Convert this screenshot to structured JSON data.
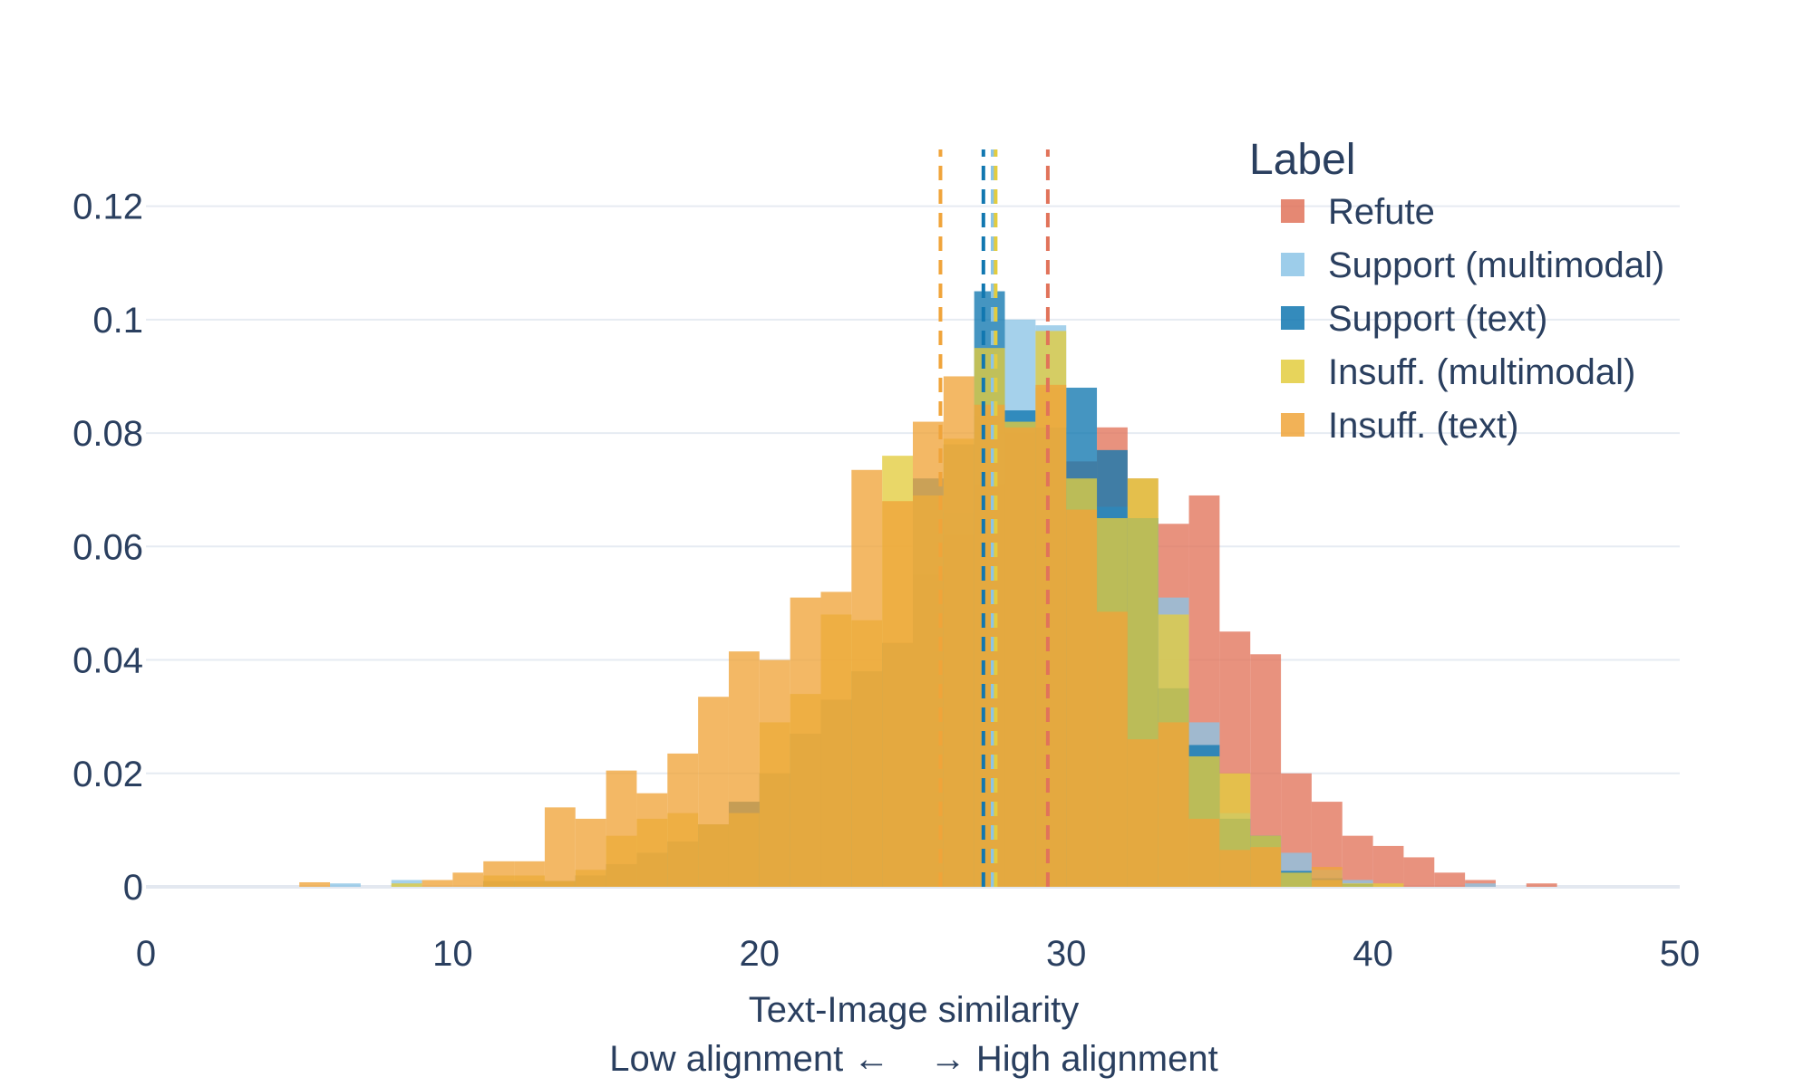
{
  "chart_data": {
    "type": "bar",
    "xlabel": "Text-Image similarity",
    "xlabel_sub": "Low alignment ←    → High alignment",
    "ylabel": "",
    "xlim": [
      0,
      50
    ],
    "ylim": [
      0,
      0.13
    ],
    "x_ticks": [
      0,
      10,
      20,
      30,
      40,
      50
    ],
    "y_ticks": [
      0,
      0.02,
      0.04,
      0.06,
      0.08,
      0.1,
      0.12
    ],
    "y_tick_labels": [
      "0",
      "0.02",
      "0.04",
      "0.06",
      "0.08",
      "0.1",
      "0.12"
    ],
    "grid": true,
    "bin_start": 5,
    "bin_width": 1,
    "bin_edges": [
      5,
      6,
      7,
      8,
      9,
      10,
      11,
      12,
      13,
      14,
      15,
      16,
      17,
      18,
      19,
      20,
      21,
      22,
      23,
      24,
      25,
      26,
      27,
      28,
      29,
      30,
      31,
      32,
      33,
      34,
      35,
      36,
      37,
      38,
      39,
      40,
      41,
      42,
      43,
      44,
      45,
      46
    ],
    "legend": {
      "title": "Label",
      "position": "top-right",
      "items": [
        {
          "label": "Refute",
          "color": "#e1735a"
        },
        {
          "label": "Support (multimodal)",
          "color": "#8cc4e6"
        },
        {
          "label": "Support (text)",
          "color": "#1177b0"
        },
        {
          "label": "Insuff. (multimodal)",
          "color": "#e3cc3e"
        },
        {
          "label": "Insuff. (text)",
          "color": "#f0a43a"
        }
      ]
    },
    "series": [
      {
        "name": "Refute",
        "color": "#e1735a",
        "mean": 29.4,
        "values": [
          0,
          0,
          0,
          0,
          0,
          0,
          0.001,
          0.001,
          0.001,
          0.002,
          0.004,
          0.006,
          0.008,
          0.011,
          0.015,
          0.02,
          0.027,
          0.033,
          0.038,
          0.043,
          0.055,
          0.062,
          0.071,
          0.08,
          0.088,
          0.075,
          0.081,
          0.072,
          0.064,
          0.069,
          0.045,
          0.041,
          0.02,
          0.015,
          0.009,
          0.0072,
          0.0052,
          0.0025,
          0.0012,
          0,
          0.0006
        ]
      },
      {
        "name": "Support (multimodal)",
        "color": "#8cc4e6",
        "mean": 27.6,
        "values": [
          0,
          0.0006,
          0,
          0.0012,
          0,
          0,
          0.001,
          0.001,
          0.001,
          0.002,
          0.004,
          0.006,
          0.008,
          0.011,
          0.015,
          0.02,
          0.027,
          0.033,
          0.038,
          0.043,
          0.055,
          0.066,
          0.083,
          0.1,
          0.099,
          0.072,
          0.067,
          0.065,
          0.051,
          0.029,
          0.013,
          0.009,
          0.006,
          0.003,
          0.0012,
          0,
          0,
          0,
          0.0006,
          0,
          0
        ]
      },
      {
        "name": "Support (text)",
        "color": "#1177b0",
        "mean": 27.3,
        "values": [
          0,
          0,
          0,
          0,
          0,
          0,
          0.001,
          0.001,
          0.001,
          0.002,
          0.004,
          0.006,
          0.008,
          0.011,
          0.015,
          0.02,
          0.027,
          0.033,
          0.038,
          0.043,
          0.072,
          0.078,
          0.105,
          0.084,
          0.081,
          0.088,
          0.077,
          0.065,
          0.035,
          0.025,
          0.012,
          0.009,
          0.0028,
          0.0015,
          0.0005,
          0,
          0,
          0,
          0,
          0,
          0
        ]
      },
      {
        "name": "Insuff. (multimodal)",
        "color": "#e3cc3e",
        "mean": 27.7,
        "values": [
          0,
          0,
          0,
          0.0006,
          0,
          0,
          0.002,
          0.002,
          0.001,
          0.003,
          0.009,
          0.012,
          0.013,
          0.011,
          0.013,
          0.029,
          0.034,
          0.048,
          0.047,
          0.076,
          0.069,
          0.079,
          0.095,
          0.082,
          0.098,
          0.072,
          0.065,
          0.072,
          0.048,
          0.023,
          0.02,
          0.009,
          0.0025,
          0.0012,
          0.0006,
          0.0006,
          0,
          0,
          0,
          0,
          0
        ]
      },
      {
        "name": "Insuff. (text)",
        "color": "#f0a43a",
        "mean": 25.9,
        "values": [
          0.0008,
          0,
          0,
          0,
          0.0012,
          0.0025,
          0.0045,
          0.0045,
          0.014,
          0.012,
          0.0205,
          0.0165,
          0.0235,
          0.0335,
          0.0415,
          0.04,
          0.051,
          0.052,
          0.0735,
          0.068,
          0.082,
          0.09,
          0.085,
          0.081,
          0.0885,
          0.0665,
          0.0485,
          0.026,
          0.029,
          0.012,
          0.0065,
          0.007,
          0,
          0.0035,
          0,
          0,
          0,
          0,
          0,
          0,
          0
        ]
      }
    ]
  }
}
